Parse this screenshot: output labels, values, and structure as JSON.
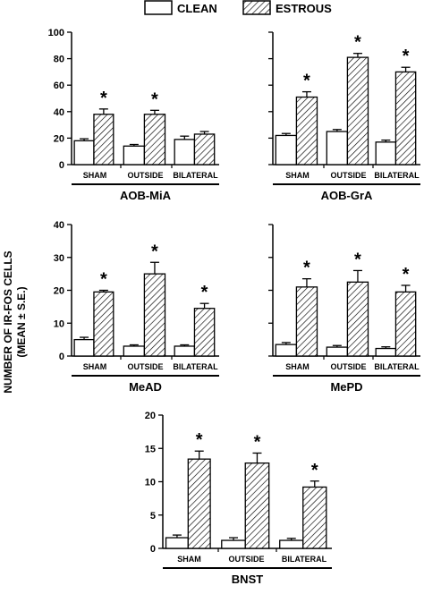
{
  "legend": {
    "clean_label": "CLEAN",
    "estrous_label": "ESTROUS"
  },
  "ylabel_line1": "NUMBER OF IR-FOS CELLS",
  "ylabel_line2": "(MEAN ± S.E.)",
  "chart_data": [
    {
      "type": "bar",
      "title": "AOB-MiA",
      "categories": [
        "SHAM",
        "OUTSIDE",
        "BILATERAL"
      ],
      "ylim": [
        0,
        100
      ],
      "yticks": [
        0,
        20,
        40,
        60,
        80,
        100
      ],
      "series": [
        {
          "name": "CLEAN",
          "values": [
            18,
            14,
            19
          ],
          "errors": [
            1.5,
            1.2,
            2.5
          ]
        },
        {
          "name": "ESTROUS",
          "values": [
            38,
            38,
            23
          ],
          "errors": [
            4,
            3,
            2
          ]
        }
      ],
      "significant": [
        true,
        true,
        false
      ]
    },
    {
      "type": "bar",
      "title": "AOB-GrA",
      "categories": [
        "SHAM",
        "OUTSIDE",
        "BILATERAL"
      ],
      "ylim": [
        0,
        100
      ],
      "yticks": [
        0,
        20,
        40,
        60,
        80,
        100
      ],
      "series": [
        {
          "name": "CLEAN",
          "values": [
            22,
            25,
            17
          ],
          "errors": [
            1.5,
            1.5,
            1.5
          ]
        },
        {
          "name": "ESTROUS",
          "values": [
            51,
            81,
            70
          ],
          "errors": [
            4,
            3,
            3.5
          ]
        }
      ],
      "significant": [
        true,
        true,
        true
      ]
    },
    {
      "type": "bar",
      "title": "MeAD",
      "categories": [
        "SHAM",
        "OUTSIDE",
        "BILATERAL"
      ],
      "ylim": [
        0,
        40
      ],
      "yticks": [
        0,
        10,
        20,
        30,
        40
      ],
      "series": [
        {
          "name": "CLEAN",
          "values": [
            5,
            3,
            3
          ],
          "errors": [
            0.7,
            0.4,
            0.4
          ]
        },
        {
          "name": "ESTROUS",
          "values": [
            19.5,
            25,
            14.5
          ],
          "errors": [
            0.5,
            3.5,
            1.5
          ]
        }
      ],
      "significant": [
        true,
        true,
        true
      ]
    },
    {
      "type": "bar",
      "title": "MePD",
      "categories": [
        "SHAM",
        "OUTSIDE",
        "BILATERAL"
      ],
      "ylim": [
        0,
        40
      ],
      "yticks": [
        0,
        10,
        20,
        30,
        40
      ],
      "series": [
        {
          "name": "CLEAN",
          "values": [
            3.5,
            2.7,
            2.3
          ],
          "errors": [
            0.6,
            0.5,
            0.5
          ]
        },
        {
          "name": "ESTROUS",
          "values": [
            21,
            22.5,
            19.5
          ],
          "errors": [
            2.5,
            3.5,
            2
          ]
        }
      ],
      "significant": [
        true,
        true,
        true
      ]
    },
    {
      "type": "bar",
      "title": "BNST",
      "categories": [
        "SHAM",
        "OUTSIDE",
        "BILATERAL"
      ],
      "ylim": [
        0,
        20
      ],
      "yticks": [
        0,
        5,
        10,
        15,
        20
      ],
      "series": [
        {
          "name": "CLEAN",
          "values": [
            1.6,
            1.2,
            1.2
          ],
          "errors": [
            0.4,
            0.4,
            0.3
          ]
        },
        {
          "name": "ESTROUS",
          "values": [
            13.4,
            12.8,
            9.2
          ],
          "errors": [
            1.2,
            1.5,
            0.9
          ]
        }
      ],
      "significant": [
        true,
        true,
        true
      ]
    }
  ]
}
